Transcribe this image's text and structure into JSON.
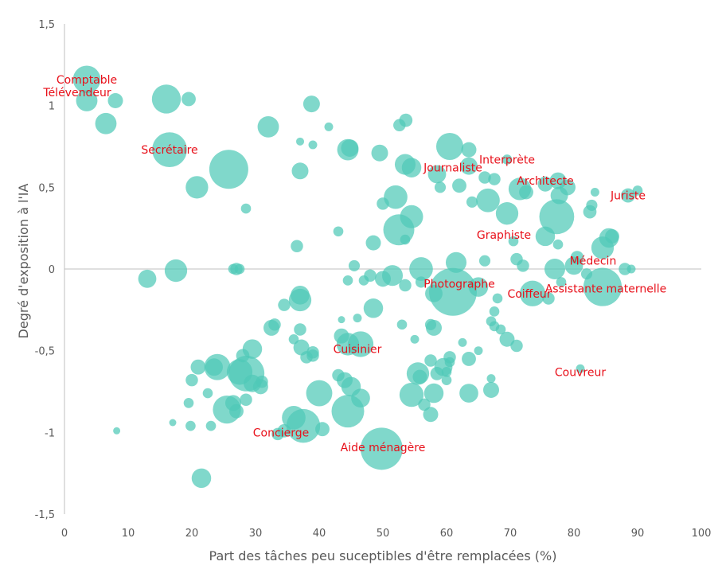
{
  "chart_data": {
    "type": "scatter",
    "subtype": "bubble",
    "title": "",
    "xlabel": "Part des tâches peu suceptibles d'être remplacées (%)",
    "ylabel": "Degré d'exposition à l'IA",
    "xlim": [
      0,
      100
    ],
    "ylim": [
      -1.5,
      1.5
    ],
    "x_ticks": [
      0,
      10,
      20,
      30,
      40,
      50,
      60,
      70,
      80,
      90,
      100
    ],
    "x_tick_labels": [
      "0",
      "10",
      "20",
      "30",
      "40",
      "50",
      "60",
      "70",
      "80",
      "90",
      "100"
    ],
    "y_ticks": [
      1.5,
      1,
      0.5,
      0,
      -0.5,
      -1,
      -1.5
    ],
    "y_tick_labels": [
      "1,5",
      "1",
      "0,5",
      "0",
      "-0,5",
      "-1",
      "-1,5"
    ],
    "grid": false,
    "bubble_color": "#4fc9b7",
    "annotation_color": "#e8101a",
    "axis_color": "#bfbfbf",
    "annotations": [
      {
        "label": "Comptable",
        "x": 3.5,
        "y": 1.16
      },
      {
        "label": "Télévendeur",
        "x": 2,
        "y": 1.08
      },
      {
        "label": "Secrétaire",
        "x": 16.5,
        "y": 0.73
      },
      {
        "label": "Interprète",
        "x": 69.5,
        "y": 0.67
      },
      {
        "label": "Journaliste",
        "x": 61,
        "y": 0.62
      },
      {
        "label": "Architecte",
        "x": 75.5,
        "y": 0.54
      },
      {
        "label": "Juriste",
        "x": 88.5,
        "y": 0.45
      },
      {
        "label": "Graphiste",
        "x": 69,
        "y": 0.21
      },
      {
        "label": "Médecin",
        "x": 83,
        "y": 0.05
      },
      {
        "label": "Photographe",
        "x": 62,
        "y": -0.09
      },
      {
        "label": "Coiffeur",
        "x": 73,
        "y": -0.15
      },
      {
        "label": "Assistante maternelle",
        "x": 85,
        "y": -0.12
      },
      {
        "label": "Cuisinier",
        "x": 46,
        "y": -0.49
      },
      {
        "label": "Couvreur",
        "x": 81,
        "y": -0.63
      },
      {
        "label": "Concierge",
        "x": 34,
        "y": -1.0
      },
      {
        "label": "Aide ménagère",
        "x": 50,
        "y": -1.09
      }
    ],
    "bubbles": [
      {
        "x": 3.5,
        "y": 1.16,
        "size": 300
      },
      {
        "x": 3.5,
        "y": 1.03,
        "size": 180
      },
      {
        "x": 8,
        "y": 1.03,
        "size": 90
      },
      {
        "x": 6.5,
        "y": 0.89,
        "size": 180
      },
      {
        "x": 16,
        "y": 1.04,
        "size": 330
      },
      {
        "x": 19.5,
        "y": 1.04,
        "size": 80
      },
      {
        "x": 16.5,
        "y": 0.73,
        "size": 480
      },
      {
        "x": 25.8,
        "y": 0.61,
        "size": 600
      },
      {
        "x": 20.8,
        "y": 0.5,
        "size": 200
      },
      {
        "x": 32,
        "y": 0.87,
        "size": 180
      },
      {
        "x": 38.8,
        "y": 1.01,
        "size": 110
      },
      {
        "x": 37,
        "y": 0.78,
        "size": 25
      },
      {
        "x": 41.5,
        "y": 0.87,
        "size": 30
      },
      {
        "x": 39,
        "y": 0.76,
        "size": 30
      },
      {
        "x": 37,
        "y": 0.6,
        "size": 110
      },
      {
        "x": 28.5,
        "y": 0.37,
        "size": 40
      },
      {
        "x": 44.5,
        "y": 0.73,
        "size": 180
      },
      {
        "x": 49.5,
        "y": 0.71,
        "size": 110
      },
      {
        "x": 44.8,
        "y": 0.74,
        "size": 120
      },
      {
        "x": 52.6,
        "y": 0.88,
        "size": 60
      },
      {
        "x": 53.6,
        "y": 0.91,
        "size": 70
      },
      {
        "x": 53.5,
        "y": 0.64,
        "size": 170
      },
      {
        "x": 54.5,
        "y": 0.62,
        "size": 150
      },
      {
        "x": 52,
        "y": 0.44,
        "size": 220
      },
      {
        "x": 50,
        "y": 0.4,
        "size": 60
      },
      {
        "x": 54.5,
        "y": 0.32,
        "size": 210
      },
      {
        "x": 52.5,
        "y": 0.24,
        "size": 380
      },
      {
        "x": 53.5,
        "y": 0.18,
        "size": 40
      },
      {
        "x": 48.5,
        "y": 0.16,
        "size": 90
      },
      {
        "x": 43,
        "y": 0.23,
        "size": 40
      },
      {
        "x": 36.5,
        "y": 0.14,
        "size": 60
      },
      {
        "x": 60.5,
        "y": 0.75,
        "size": 290
      },
      {
        "x": 63.5,
        "y": 0.73,
        "size": 90
      },
      {
        "x": 58.5,
        "y": 0.58,
        "size": 130
      },
      {
        "x": 63.5,
        "y": 0.63,
        "size": 120
      },
      {
        "x": 59,
        "y": 0.5,
        "size": 50
      },
      {
        "x": 62,
        "y": 0.51,
        "size": 80
      },
      {
        "x": 66,
        "y": 0.56,
        "size": 60
      },
      {
        "x": 69.5,
        "y": 0.67,
        "size": 40
      },
      {
        "x": 67.5,
        "y": 0.55,
        "size": 60
      },
      {
        "x": 66.5,
        "y": 0.42,
        "size": 220
      },
      {
        "x": 64,
        "y": 0.41,
        "size": 50
      },
      {
        "x": 71.5,
        "y": 0.49,
        "size": 200
      },
      {
        "x": 69.5,
        "y": 0.34,
        "size": 200
      },
      {
        "x": 72.5,
        "y": 0.47,
        "size": 80
      },
      {
        "x": 70.5,
        "y": 0.17,
        "size": 40
      },
      {
        "x": 75.5,
        "y": 0.52,
        "size": 90
      },
      {
        "x": 77.5,
        "y": 0.54,
        "size": 110
      },
      {
        "x": 79,
        "y": 0.5,
        "size": 100
      },
      {
        "x": 77.7,
        "y": 0.45,
        "size": 120
      },
      {
        "x": 77.3,
        "y": 0.32,
        "size": 480
      },
      {
        "x": 75.5,
        "y": 0.2,
        "size": 150
      },
      {
        "x": 82.5,
        "y": 0.35,
        "size": 70
      },
      {
        "x": 82.8,
        "y": 0.39,
        "size": 50
      },
      {
        "x": 83.3,
        "y": 0.47,
        "size": 30
      },
      {
        "x": 88.5,
        "y": 0.45,
        "size": 80
      },
      {
        "x": 90,
        "y": 0.48,
        "size": 40
      },
      {
        "x": 84.5,
        "y": 0.13,
        "size": 200
      },
      {
        "x": 85.5,
        "y": 0.19,
        "size": 150
      },
      {
        "x": 86,
        "y": 0.2,
        "size": 80
      },
      {
        "x": 88,
        "y": 0.0,
        "size": 60
      },
      {
        "x": 89,
        "y": 0.0,
        "size": 30
      },
      {
        "x": 80.5,
        "y": 0.07,
        "size": 70
      },
      {
        "x": 80,
        "y": 0.02,
        "size": 130
      },
      {
        "x": 77,
        "y": 0.0,
        "size": 170
      },
      {
        "x": 77.5,
        "y": 0.15,
        "size": 40
      },
      {
        "x": 82,
        "y": -0.03,
        "size": 50
      },
      {
        "x": 78,
        "y": -0.08,
        "size": 40
      },
      {
        "x": 76,
        "y": -0.18,
        "size": 60
      },
      {
        "x": 72,
        "y": 0.02,
        "size": 60
      },
      {
        "x": 71,
        "y": 0.06,
        "size": 60
      },
      {
        "x": 66,
        "y": 0.05,
        "size": 50
      },
      {
        "x": 61.5,
        "y": 0.04,
        "size": 170
      },
      {
        "x": 56,
        "y": 0.0,
        "size": 220
      },
      {
        "x": 56,
        "y": -0.08,
        "size": 50
      },
      {
        "x": 51.5,
        "y": -0.04,
        "size": 170
      },
      {
        "x": 53.5,
        "y": -0.1,
        "size": 60
      },
      {
        "x": 50,
        "y": -0.06,
        "size": 100
      },
      {
        "x": 48,
        "y": -0.04,
        "size": 60
      },
      {
        "x": 47,
        "y": -0.07,
        "size": 40
      },
      {
        "x": 44.5,
        "y": -0.07,
        "size": 40
      },
      {
        "x": 45.5,
        "y": 0.02,
        "size": 50
      },
      {
        "x": 61,
        "y": -0.14,
        "size": 900
      },
      {
        "x": 58,
        "y": -0.15,
        "size": 120
      },
      {
        "x": 65,
        "y": -0.11,
        "size": 150
      },
      {
        "x": 73.5,
        "y": -0.15,
        "size": 260
      },
      {
        "x": 84.5,
        "y": -0.11,
        "size": 580
      },
      {
        "x": 68,
        "y": -0.18,
        "size": 40
      },
      {
        "x": 67.5,
        "y": -0.26,
        "size": 40
      },
      {
        "x": 67,
        "y": -0.32,
        "size": 40
      },
      {
        "x": 67.5,
        "y": -0.35,
        "size": 40
      },
      {
        "x": 68.5,
        "y": -0.37,
        "size": 40
      },
      {
        "x": 69.5,
        "y": -0.43,
        "size": 90
      },
      {
        "x": 71,
        "y": -0.47,
        "size": 60
      },
      {
        "x": 48.5,
        "y": -0.24,
        "size": 150
      },
      {
        "x": 46,
        "y": -0.3,
        "size": 30
      },
      {
        "x": 43.5,
        "y": -0.31,
        "size": 20
      },
      {
        "x": 58,
        "y": -0.36,
        "size": 100
      },
      {
        "x": 57.5,
        "y": -0.34,
        "size": 50
      },
      {
        "x": 55,
        "y": -0.43,
        "size": 30
      },
      {
        "x": 53,
        "y": -0.34,
        "size": 40
      },
      {
        "x": 60.5,
        "y": -0.54,
        "size": 60
      },
      {
        "x": 62.5,
        "y": -0.45,
        "size": 30
      },
      {
        "x": 65,
        "y": -0.5,
        "size": 30
      },
      {
        "x": 37,
        "y": -0.19,
        "size": 200
      },
      {
        "x": 37,
        "y": -0.16,
        "size": 140
      },
      {
        "x": 34.5,
        "y": -0.22,
        "size": 60
      },
      {
        "x": 32.5,
        "y": -0.36,
        "size": 100
      },
      {
        "x": 33,
        "y": -0.34,
        "size": 60
      },
      {
        "x": 37,
        "y": -0.37,
        "size": 60
      },
      {
        "x": 36,
        "y": -0.43,
        "size": 40
      },
      {
        "x": 37.2,
        "y": -0.48,
        "size": 100
      },
      {
        "x": 39,
        "y": -0.51,
        "size": 60
      },
      {
        "x": 38,
        "y": -0.54,
        "size": 60
      },
      {
        "x": 39,
        "y": -0.53,
        "size": 60
      },
      {
        "x": 43.5,
        "y": -0.41,
        "size": 90
      },
      {
        "x": 44.5,
        "y": -0.46,
        "size": 200
      },
      {
        "x": 46.5,
        "y": -0.46,
        "size": 260
      },
      {
        "x": 29.5,
        "y": -0.49,
        "size": 150
      },
      {
        "x": 28,
        "y": -0.53,
        "size": 70
      },
      {
        "x": 24,
        "y": -0.6,
        "size": 270
      },
      {
        "x": 21,
        "y": -0.6,
        "size": 90
      },
      {
        "x": 20,
        "y": -0.68,
        "size": 60
      },
      {
        "x": 23.5,
        "y": -0.6,
        "size": 120
      },
      {
        "x": 27.5,
        "y": -0.63,
        "size": 260
      },
      {
        "x": 28.6,
        "y": -0.64,
        "size": 500
      },
      {
        "x": 29.5,
        "y": -0.7,
        "size": 120
      },
      {
        "x": 28.5,
        "y": -0.8,
        "size": 60
      },
      {
        "x": 31,
        "y": -0.69,
        "size": 60
      },
      {
        "x": 30.8,
        "y": -0.72,
        "size": 90
      },
      {
        "x": 22.5,
        "y": -0.76,
        "size": 40
      },
      {
        "x": 19.5,
        "y": -0.82,
        "size": 40
      },
      {
        "x": 25.5,
        "y": -0.86,
        "size": 310
      },
      {
        "x": 26.5,
        "y": -0.82,
        "size": 100
      },
      {
        "x": 27,
        "y": -0.87,
        "size": 80
      },
      {
        "x": 19.8,
        "y": -0.96,
        "size": 40
      },
      {
        "x": 23,
        "y": -0.96,
        "size": 40
      },
      {
        "x": 21.5,
        "y": -1.28,
        "size": 150
      },
      {
        "x": 17,
        "y": -0.94,
        "size": 20
      },
      {
        "x": 8.2,
        "y": -0.99,
        "size": 20
      },
      {
        "x": 40,
        "y": -0.76,
        "size": 270
      },
      {
        "x": 43,
        "y": -0.65,
        "size": 60
      },
      {
        "x": 44,
        "y": -0.68,
        "size": 100
      },
      {
        "x": 45,
        "y": -0.72,
        "size": 150
      },
      {
        "x": 44.5,
        "y": -0.87,
        "size": 420
      },
      {
        "x": 46.5,
        "y": -0.79,
        "size": 140
      },
      {
        "x": 36,
        "y": -0.91,
        "size": 220
      },
      {
        "x": 37.5,
        "y": -0.96,
        "size": 450
      },
      {
        "x": 40.5,
        "y": -0.98,
        "size": 80
      },
      {
        "x": 34.5,
        "y": -0.99,
        "size": 70
      },
      {
        "x": 33.5,
        "y": -1.01,
        "size": 60
      },
      {
        "x": 49.8,
        "y": -1.1,
        "size": 700
      },
      {
        "x": 54.5,
        "y": -0.77,
        "size": 230
      },
      {
        "x": 55.5,
        "y": -0.64,
        "size": 200
      },
      {
        "x": 55.8,
        "y": -0.66,
        "size": 80
      },
      {
        "x": 57.5,
        "y": -0.56,
        "size": 60
      },
      {
        "x": 59.5,
        "y": -0.6,
        "size": 130
      },
      {
        "x": 58.5,
        "y": -0.64,
        "size": 70
      },
      {
        "x": 58,
        "y": -0.76,
        "size": 150
      },
      {
        "x": 56.5,
        "y": -0.83,
        "size": 60
      },
      {
        "x": 57.5,
        "y": -0.89,
        "size": 90
      },
      {
        "x": 60,
        "y": -0.68,
        "size": 40
      },
      {
        "x": 63.5,
        "y": -0.55,
        "size": 80
      },
      {
        "x": 60.5,
        "y": -0.57,
        "size": 40
      },
      {
        "x": 60,
        "y": -0.63,
        "size": 40
      },
      {
        "x": 63.5,
        "y": -0.76,
        "size": 140
      },
      {
        "x": 67,
        "y": -0.74,
        "size": 100
      },
      {
        "x": 67,
        "y": -0.67,
        "size": 30
      },
      {
        "x": 81,
        "y": -0.61,
        "size": 30
      },
      {
        "x": 13,
        "y": -0.06,
        "size": 130
      },
      {
        "x": 17.5,
        "y": -0.01,
        "size": 200
      },
      {
        "x": 26.5,
        "y": 0.0,
        "size": 40
      },
      {
        "x": 27,
        "y": 0.0,
        "size": 60
      },
      {
        "x": 27.5,
        "y": 0.0,
        "size": 40
      }
    ]
  }
}
